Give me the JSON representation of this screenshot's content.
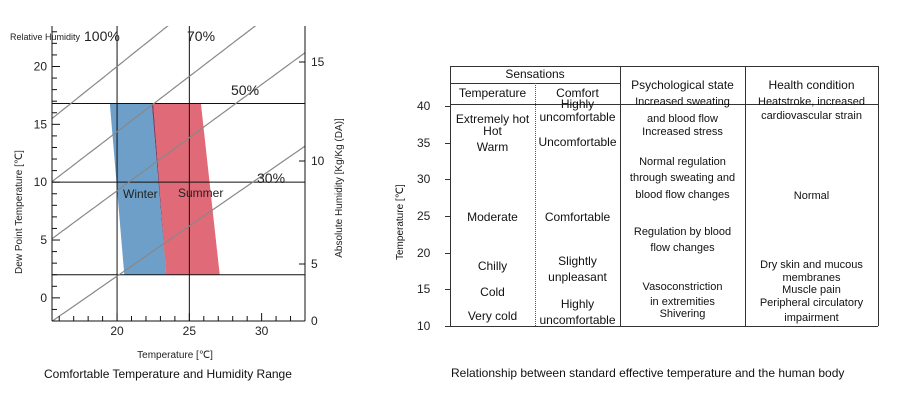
{
  "chart_data": [
    {
      "type": "area",
      "xlabel": "Temperature [℃]",
      "ylabel": "Dew Point Temperature [℃]",
      "y2label": "Absolute Humidity [Kg/Kg (DA)]",
      "xlim": [
        15.5,
        33
      ],
      "ylim": [
        -2,
        23.5
      ],
      "xticks": [
        "20",
        "25",
        "30"
      ],
      "yticks": [
        "0",
        "5",
        "10",
        "15",
        "20"
      ],
      "y2ticks": [
        "0",
        "5",
        "10",
        "15"
      ],
      "rh_label_title": "Relative Humidity",
      "rh_curves": [
        {
          "label": "100%",
          "rh": 100
        },
        {
          "label": "70%",
          "rh": 70
        },
        {
          "label": "50%",
          "rh": 50
        },
        {
          "label": "30%",
          "rh": 30
        }
      ],
      "grid_x": [
        20,
        25
      ],
      "grid_y": [
        2,
        10,
        16.8
      ],
      "series": [
        {
          "name": "Winter",
          "color": "#6e9fc9",
          "polygon": [
            [
              19.5,
              16.8
            ],
            [
              22.4,
              16.8
            ],
            [
              23.4,
              2
            ],
            [
              20.5,
              2
            ]
          ]
        },
        {
          "name": "Summer",
          "color": "#e06a77",
          "polygon": [
            [
              22.5,
              16.8
            ],
            [
              25.8,
              16.8
            ],
            [
              27.1,
              2
            ],
            [
              23.4,
              2
            ]
          ]
        }
      ],
      "overlap_color": "#7a3d60",
      "caption": "Comfortable Temperature and Humidity Range"
    },
    {
      "type": "table",
      "ylabel": "Temperature [℃]",
      "yticks": [
        "10",
        "15",
        "20",
        "25",
        "30",
        "35",
        "40"
      ],
      "headers": {
        "sensations": "Sensations",
        "temperature": "Temperature",
        "comfort": "Comfort",
        "psychological": "Psychological state",
        "health": "Health condition"
      },
      "temperature_col": [
        {
          "text": "Extremely hot",
          "t": 38.1
        },
        {
          "text": "Hot",
          "t": 36.4
        },
        {
          "text": "Warm",
          "t": 34.3
        },
        {
          "text": "Moderate",
          "t": 24.7
        },
        {
          "text": "Chilly",
          "t": 18.1
        },
        {
          "text": "Cold",
          "t": 14.5
        },
        {
          "text": "Very cold",
          "t": 11.2
        }
      ],
      "comfort_col": [
        {
          "text": "Highly",
          "t": 40.2
        },
        {
          "text": "uncomfortable",
          "t": 38.3
        },
        {
          "text": "Uncomfortable",
          "t": 35.0
        },
        {
          "text": "Comfortable",
          "t": 24.7
        },
        {
          "text": "Slightly",
          "t": 18.7
        },
        {
          "text": "unpleasant",
          "t": 16.6
        },
        {
          "text": "Highly",
          "t": 12.8
        },
        {
          "text": "uncomfortable",
          "t": 10.7
        }
      ],
      "psych_col": [
        {
          "text": "Increased sweating",
          "t": 40.3
        },
        {
          "text": "and blood flow",
          "t": 38.0
        },
        {
          "text": "Increased stress",
          "t": 36.2
        },
        {
          "text": "Normal regulation",
          "t": 32.1
        },
        {
          "text": "through sweating and",
          "t": 29.9
        },
        {
          "text": "blood flow changes",
          "t": 27.6
        },
        {
          "text": "Regulation by blood",
          "t": 22.5
        },
        {
          "text": "flow changes",
          "t": 20.4
        },
        {
          "text": "Vasoconstriction",
          "t": 15.0
        },
        {
          "text": "in extremities",
          "t": 13.0
        },
        {
          "text": "Shivering",
          "t": 11.3
        }
      ],
      "health_col": [
        {
          "text": "Heatstroke, increased",
          "t": 40.3
        },
        {
          "text": "cardiovascular strain",
          "t": 38.3
        },
        {
          "text": "Normal",
          "t": 27.5
        },
        {
          "text": "Dry skin and mucous",
          "t": 18.1
        },
        {
          "text": "membranes",
          "t": 16.3
        },
        {
          "text": "Muscle pain",
          "t": 14.6
        },
        {
          "text": "Peripheral circulatory",
          "t": 12.9
        },
        {
          "text": "impairment",
          "t": 10.8
        }
      ],
      "caption": "Relationship between standard effective temperature and the human body"
    }
  ]
}
